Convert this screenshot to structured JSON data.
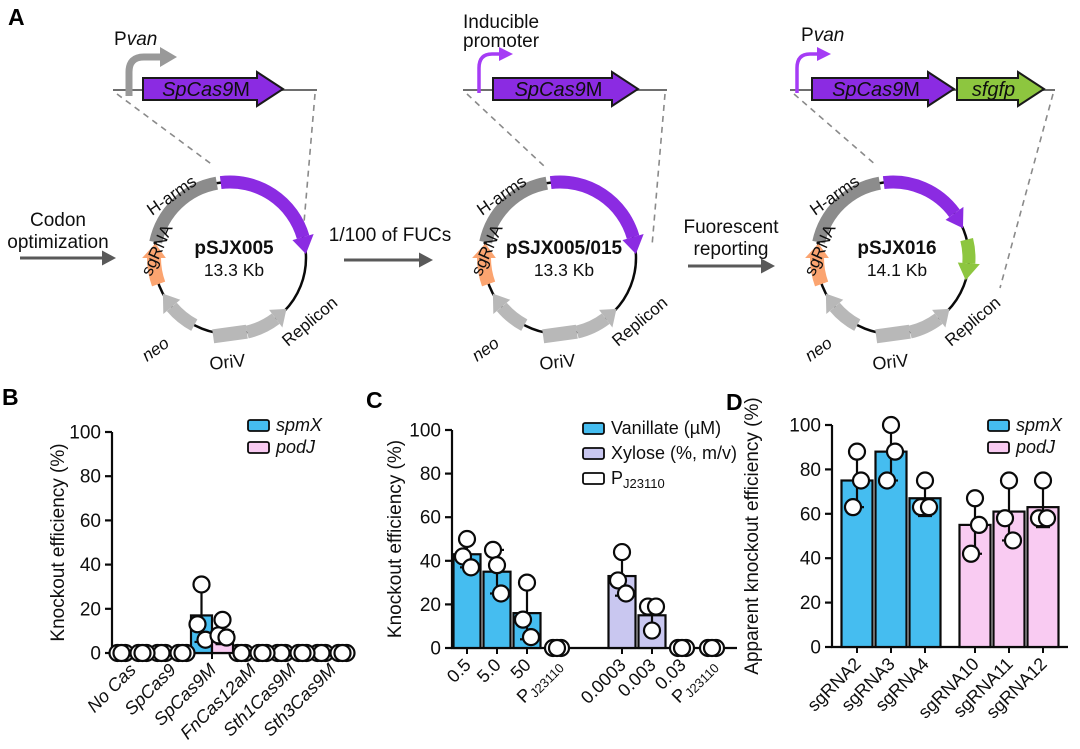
{
  "panels": {
    "a": "A",
    "b": "B",
    "c": "C",
    "d": "D"
  },
  "colors": {
    "spmx_blue": "#45BDF0",
    "podj_pink": "#F9CBF2",
    "xylose_lavender": "#C9C7F0",
    "white": "#FFFFFF",
    "cas9_purple": "#8B2BE2",
    "bright_purple": "#A53CF5",
    "sfgfp_green": "#8DC63F",
    "sgrna_orange": "#FBA470",
    "harms_gray": "#8C8C8C",
    "feature_gray": "#B8B8B8",
    "promoter_gray": "#999999",
    "arrow_gray": "#595959",
    "blue_text": "#2020E0"
  },
  "panel_a": {
    "feature_labels": {
      "sgrna": "sgRNA",
      "harms": "H-arms",
      "neo": "neo",
      "oriv": "OriV",
      "replicon": "Replicon"
    },
    "transitions": [
      {
        "lines": [
          "Codon",
          "optimization"
        ]
      },
      {
        "lines": [
          "1/100 of FUCs"
        ]
      },
      {
        "lines": [
          "Fuorescent",
          "reporting"
        ]
      }
    ],
    "plasmids": [
      {
        "name": "pSJX005",
        "size": "13.3 Kb",
        "promoter": {
          "style": "thick",
          "color": "#999999",
          "label_parts": [
            {
              "text": "P",
              "italic": false
            },
            {
              "text": "van",
              "italic": true
            }
          ]
        },
        "genes": [
          {
            "italic": "SpCas9",
            "regular": "M",
            "fill": "#8B2BE2",
            "text_color": "#FFFFFF"
          }
        ],
        "green_arc": false
      },
      {
        "name": "pSJX005/015",
        "size": "13.3 Kb",
        "promoter": {
          "style": "thin",
          "color": "#A53CF5",
          "label_lines": [
            "Inducible",
            "promoter"
          ]
        },
        "genes": [
          {
            "italic": "SpCas9",
            "regular": "M",
            "fill": "#8B2BE2",
            "text_color": "#FFFFFF"
          }
        ],
        "green_arc": false
      },
      {
        "name": "pSJX016",
        "size": "14.1 Kb",
        "promoter": {
          "style": "thin",
          "color": "#A53CF5",
          "label_parts": [
            {
              "text": "P",
              "italic": false
            },
            {
              "text": "van",
              "italic": true
            }
          ]
        },
        "genes": [
          {
            "italic": "SpCas9",
            "regular": "M",
            "fill": "#8B2BE2",
            "text_color": "#FFFFFF"
          },
          {
            "italic": "sfgfp",
            "regular": "",
            "fill": "#8DC63F",
            "text_color": "#FFFFFF"
          }
        ],
        "green_arc": true
      }
    ]
  },
  "chart_data": [
    {
      "id": "B",
      "type": "bar",
      "ylabel": "Knockout efficiency (%)",
      "ylim": [
        0,
        100
      ],
      "yticks": [
        0,
        20,
        40,
        60,
        80,
        100
      ],
      "categories": [
        "No Cas",
        "SpCas9",
        "SpCas9M",
        "FnCas12aM",
        "Sth1Cas9M",
        "Sth3Cas9M"
      ],
      "xlabel_italic": true,
      "series": [
        {
          "name": "spmX",
          "color": "#45BDF0",
          "values": [
            0,
            0,
            17,
            0,
            0,
            0
          ],
          "err_low": [
            0,
            0,
            5,
            0,
            0,
            0
          ],
          "err_high": [
            0,
            0,
            31,
            0,
            0,
            0
          ],
          "points": [
            [
              0,
              0,
              0
            ],
            [
              0,
              0,
              0
            ],
            [
              13,
              6,
              31
            ],
            [
              0,
              0,
              0
            ],
            [
              0,
              0,
              0
            ],
            [
              0,
              0,
              0
            ]
          ]
        },
        {
          "name": "podJ",
          "color": "#F9CBF2",
          "values": [
            0,
            0,
            9.5,
            0,
            0,
            0
          ],
          "err_low": [
            0,
            0,
            4,
            0,
            0,
            0
          ],
          "err_high": [
            0,
            0,
            15,
            0,
            0,
            0
          ],
          "points": [
            [
              0,
              0,
              0
            ],
            [
              0,
              0,
              0
            ],
            [
              8,
              7,
              15
            ],
            [
              0,
              0,
              0
            ],
            [
              0,
              0,
              0
            ],
            [
              0,
              0,
              0
            ]
          ]
        }
      ],
      "legend": [
        {
          "label": "spmX",
          "color": "#45BDF0",
          "italic": true
        },
        {
          "label": "podJ",
          "color": "#F9CBF2",
          "italic": true
        }
      ]
    },
    {
      "id": "C",
      "type": "bar",
      "ylabel": "Knockout efficiency (%)",
      "ylim": [
        0,
        100
      ],
      "yticks": [
        0,
        20,
        40,
        60,
        80,
        100
      ],
      "categories": [
        "0.5",
        "5.0",
        "50",
        [
          "P",
          "J23110"
        ],
        "0.0003",
        "0.003",
        "0.03",
        [
          "P",
          "J23110"
        ]
      ],
      "xlabel_italic": false,
      "single": {
        "values": [
          43,
          35,
          16,
          0,
          33,
          15,
          0,
          0
        ],
        "colors": [
          "#45BDF0",
          "#45BDF0",
          "#45BDF0",
          "#FFFFFF",
          "#C9C7F0",
          "#C9C7F0",
          "#C9C7F0",
          "#FFFFFF"
        ],
        "err_low": [
          37,
          25,
          4,
          0,
          24,
          8,
          0,
          0
        ],
        "err_high": [
          50,
          45,
          30,
          0,
          44,
          20,
          0,
          0
        ],
        "points": [
          [
            42,
            37,
            50
          ],
          [
            45,
            25,
            38
          ],
          [
            13,
            5,
            30
          ],
          [
            0,
            0,
            0
          ],
          [
            31,
            25,
            44
          ],
          [
            19,
            19,
            8
          ],
          [
            0,
            0,
            0
          ],
          [
            0,
            0,
            0
          ]
        ]
      },
      "legend": [
        {
          "label": "Vanillate (µM)",
          "color": "#45BDF0",
          "italic": false
        },
        {
          "label": "Xylose (%, m/v)",
          "color": "#C9C7F0",
          "italic": false
        },
        {
          "label": [
            "P",
            "J23110"
          ],
          "color": "#FFFFFF",
          "italic": false
        }
      ]
    },
    {
      "id": "D",
      "type": "bar",
      "ylabel": "Apparent knockout efficiency (%)",
      "ylim": [
        0,
        100
      ],
      "yticks": [
        0,
        20,
        40,
        60,
        80,
        100
      ],
      "categories": [
        "sgRNA2",
        "sgRNA3",
        "sgRNA4",
        "sgRNA10",
        "sgRNA11",
        "sgRNA12"
      ],
      "xlabel_italic": false,
      "single": {
        "values": [
          75,
          88,
          67,
          55,
          61,
          63
        ],
        "colors": [
          "#45BDF0",
          "#45BDF0",
          "#45BDF0",
          "#F9CBF2",
          "#F9CBF2",
          "#F9CBF2"
        ],
        "err_low": [
          63,
          75,
          59,
          42,
          48,
          54
        ],
        "err_high": [
          88,
          100,
          75,
          67,
          75,
          74
        ],
        "points": [
          [
            63,
            75,
            88
          ],
          [
            75,
            88,
            100
          ],
          [
            63,
            63,
            75
          ],
          [
            42,
            55,
            67
          ],
          [
            58,
            48,
            75
          ],
          [
            58,
            58,
            75
          ]
        ]
      },
      "legend": [
        {
          "label": "spmX",
          "color": "#45BDF0",
          "italic": true
        },
        {
          "label": "podJ",
          "color": "#F9CBF2",
          "italic": true
        }
      ]
    }
  ]
}
